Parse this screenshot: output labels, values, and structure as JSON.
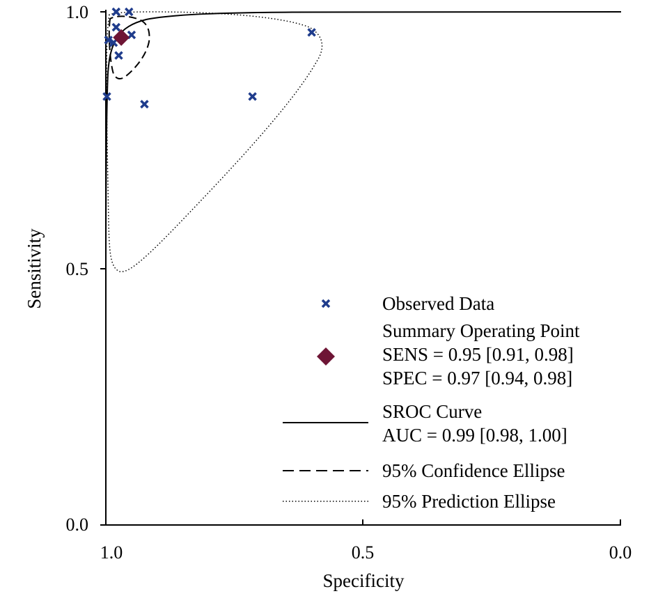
{
  "chart_data": {
    "type": "scatter",
    "xlabel": "Specificity",
    "ylabel": "Sensitivity",
    "x_reversed": true,
    "xlim": [
      1.0,
      0.0
    ],
    "ylim": [
      0.0,
      1.0
    ],
    "x_ticks": [
      {
        "value": 1.0,
        "label": "1.0"
      },
      {
        "value": 0.5,
        "label": "0.5"
      },
      {
        "value": 0.0,
        "label": "0.0"
      }
    ],
    "y_ticks": [
      {
        "value": 1.0,
        "label": "1.0"
      },
      {
        "value": 0.5,
        "label": "0.5"
      },
      {
        "value": 0.0,
        "label": "0.0"
      }
    ],
    "grid": false,
    "legend_position": "bottom-right",
    "observed_data": [
      {
        "spec": 0.98,
        "sens": 1.0
      },
      {
        "spec": 0.955,
        "sens": 1.0
      },
      {
        "spec": 0.98,
        "sens": 0.97
      },
      {
        "spec": 0.995,
        "sens": 0.945
      },
      {
        "spec": 0.985,
        "sens": 0.94
      },
      {
        "spec": 0.95,
        "sens": 0.955
      },
      {
        "spec": 0.975,
        "sens": 0.915
      },
      {
        "spec": 0.998,
        "sens": 0.835
      },
      {
        "spec": 0.925,
        "sens": 0.82
      },
      {
        "spec": 0.715,
        "sens": 0.835
      },
      {
        "spec": 0.6,
        "sens": 0.96
      }
    ],
    "summary_point": {
      "sens": 0.95,
      "spec": 0.97
    },
    "colors": {
      "observed": "#1f3c8c",
      "summary": "#6e1535",
      "lines": "#000000"
    },
    "legend": {
      "observed": "Observed Data",
      "summary_title": "Summary Operating Point",
      "summary_sens": "SENS = 0.95 [0.91, 0.98]",
      "summary_spec": "SPEC = 0.97 [0.94, 0.98]",
      "sroc_title": "SROC Curve",
      "sroc_auc": "AUC = 0.99 [0.98, 1.00]",
      "confidence": "95% Confidence Ellipse",
      "prediction": "95% Prediction Ellipse"
    }
  }
}
